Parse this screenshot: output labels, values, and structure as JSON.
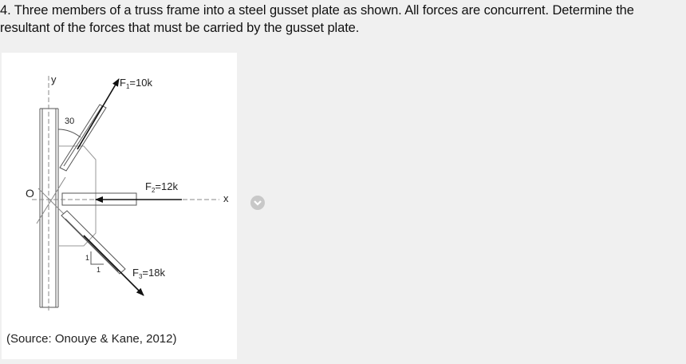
{
  "question": {
    "line1": "4. Three members of a truss frame into a steel gusset plate as shown. All forces are concurrent. Determine the",
    "line2": "resultant of the forces that must be carried by the gusset plate."
  },
  "figure": {
    "y_axis": "y",
    "x_axis": "x",
    "origin": "O",
    "angle": "30",
    "slope_rise": "1",
    "slope_run": "1",
    "forces": [
      {
        "label": "F",
        "sub": "1",
        "value": "=10k"
      },
      {
        "label": "F",
        "sub": "2",
        "value": "=12k"
      },
      {
        "label": "F",
        "sub": "3",
        "value": "=18k"
      }
    ],
    "caption": "(Source: Onouye & Kane, 2012)"
  },
  "expand_icon": "chevron-down-icon"
}
